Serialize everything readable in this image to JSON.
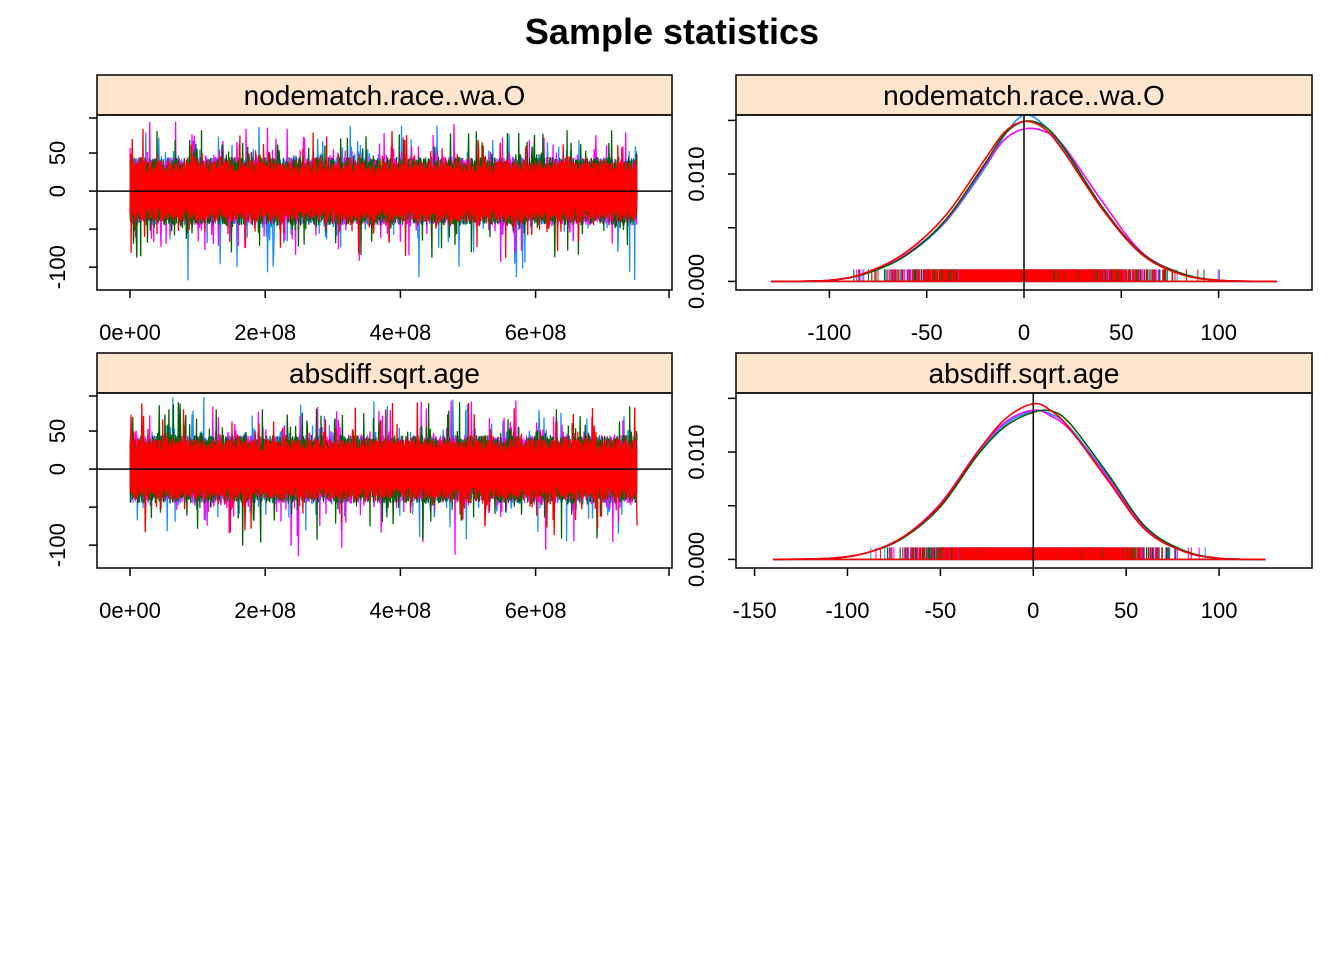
{
  "figure": {
    "title": "Sample statistics"
  },
  "colors": {
    "strip_background": "#FFE5CC",
    "chains": [
      "#1E90FF",
      "#FF00FF",
      "#006400",
      "#FF0000"
    ],
    "reference_line": "#000000"
  },
  "chart_data": [
    {
      "type": "line",
      "subtype": "trace",
      "strip_label": "nodematch.race..wa.O",
      "x_range": [
        0,
        750000000
      ],
      "ylim": [
        -130,
        100
      ],
      "x_ticks": [
        0,
        200000000,
        400000000,
        600000000
      ],
      "x_tick_labels": [
        "0e+00",
        "2e+08",
        "4e+08",
        "6e+08"
      ],
      "y_ticks": [
        -100,
        -50,
        0,
        50
      ],
      "y_tick_labels": [
        "-100",
        "",
        "0",
        "50"
      ],
      "reference_y": 0,
      "series": [
        {
          "typical_range": [
            -45,
            45
          ],
          "extremes": [
            -118,
            86
          ]
        },
        {
          "typical_range": [
            -45,
            45
          ],
          "extremes": [
            -95,
            91
          ]
        },
        {
          "typical_range": [
            -45,
            45
          ],
          "extremes": [
            -95,
            80
          ]
        },
        {
          "typical_range": [
            -40,
            40
          ],
          "extremes": [
            -88,
            82
          ]
        }
      ]
    },
    {
      "type": "line",
      "subtype": "density",
      "strip_label": "nodematch.race..wa.O",
      "xlim": [
        -148,
        148
      ],
      "ylim": [
        -0.0008,
        0.0155
      ],
      "x_ticks": [
        -100,
        -50,
        0,
        50,
        100
      ],
      "x_tick_labels": [
        "-100",
        "-50",
        "0",
        "50",
        "100"
      ],
      "y_ticks": [
        0,
        0.005,
        0.01,
        0.015
      ],
      "y_tick_labels": [
        "0.000",
        "",
        "0.010",
        ""
      ],
      "reference_x": 0,
      "series": [
        {
          "peak": 0.0156,
          "x": [
            -130,
            -100,
            -80,
            -60,
            -40,
            -20,
            -10,
            0,
            10,
            20,
            40,
            60,
            80,
            100,
            130
          ],
          "y": [
            0,
            0.0001,
            0.0008,
            0.0025,
            0.0056,
            0.0106,
            0.0136,
            0.0155,
            0.0146,
            0.0124,
            0.0068,
            0.0026,
            0.0007,
            0.0001,
            0
          ]
        },
        {
          "peak": 0.0143,
          "x": [
            -130,
            -100,
            -80,
            -60,
            -40,
            -20,
            -10,
            0,
            10,
            20,
            40,
            60,
            80,
            100,
            130
          ],
          "y": [
            0,
            0.0001,
            0.0008,
            0.0026,
            0.0057,
            0.0108,
            0.0132,
            0.0142,
            0.014,
            0.0127,
            0.0075,
            0.0028,
            0.0008,
            0.0001,
            0
          ]
        },
        {
          "peak": 0.015,
          "x": [
            -130,
            -100,
            -80,
            -60,
            -40,
            -20,
            -10,
            0,
            10,
            20,
            40,
            60,
            80,
            100,
            130
          ],
          "y": [
            0,
            0.0001,
            0.0008,
            0.0025,
            0.0058,
            0.011,
            0.0137,
            0.0149,
            0.0145,
            0.0126,
            0.007,
            0.0027,
            0.0008,
            0.0001,
            0
          ]
        },
        {
          "peak": 0.015,
          "x": [
            -130,
            -100,
            -80,
            -60,
            -40,
            -20,
            -10,
            0,
            10,
            20,
            40,
            60,
            80,
            100,
            130
          ],
          "y": [
            0,
            0.0001,
            0.0009,
            0.0028,
            0.0062,
            0.0114,
            0.0139,
            0.0149,
            0.0143,
            0.0122,
            0.0068,
            0.0026,
            0.0007,
            0.0001,
            0
          ]
        }
      ]
    },
    {
      "type": "line",
      "subtype": "trace",
      "strip_label": "absdiff.sqrt.age",
      "x_range": [
        0,
        750000000
      ],
      "ylim": [
        -130,
        100
      ],
      "x_ticks": [
        0,
        200000000,
        400000000,
        600000000
      ],
      "x_tick_labels": [
        "0e+00",
        "2e+08",
        "4e+08",
        "6e+08"
      ],
      "y_ticks": [
        -100,
        -50,
        0,
        50
      ],
      "y_tick_labels": [
        "-100",
        "",
        "0",
        "50"
      ],
      "reference_y": 0,
      "series": [
        {
          "typical_range": [
            -45,
            45
          ],
          "extremes": [
            -95,
            95
          ]
        },
        {
          "typical_range": [
            -45,
            45
          ],
          "extremes": [
            -125,
            90
          ]
        },
        {
          "typical_range": [
            -45,
            45
          ],
          "extremes": [
            -108,
            88
          ]
        },
        {
          "typical_range": [
            -40,
            40
          ],
          "extremes": [
            -95,
            95
          ]
        }
      ]
    },
    {
      "type": "line",
      "subtype": "density",
      "strip_label": "absdiff.sqrt.age",
      "xlim": [
        -160,
        150
      ],
      "ylim": [
        -0.0008,
        0.0155
      ],
      "x_ticks": [
        -150,
        -100,
        -50,
        0,
        50,
        100
      ],
      "x_tick_labels": [
        "-150",
        "-100",
        "-50",
        "0",
        "50",
        "100"
      ],
      "y_ticks": [
        0,
        0.005,
        0.01,
        0.015
      ],
      "y_tick_labels": [
        "0.000",
        "",
        "0.010",
        ""
      ],
      "reference_x": 0,
      "series": [
        {
          "peak": 0.014,
          "x": [
            -140,
            -110,
            -90,
            -70,
            -50,
            -30,
            -15,
            0,
            10,
            20,
            40,
            60,
            80,
            100,
            125
          ],
          "y": [
            0,
            0.0001,
            0.0006,
            0.002,
            0.005,
            0.0098,
            0.0126,
            0.0138,
            0.0135,
            0.0122,
            0.0078,
            0.003,
            0.0008,
            0.0001,
            0
          ]
        },
        {
          "peak": 0.014,
          "x": [
            -140,
            -110,
            -90,
            -70,
            -50,
            -30,
            -15,
            0,
            10,
            20,
            40,
            60,
            80,
            100,
            125
          ],
          "y": [
            0,
            0.0001,
            0.0006,
            0.0021,
            0.0052,
            0.01,
            0.0128,
            0.0139,
            0.0133,
            0.012,
            0.0076,
            0.0029,
            0.0008,
            0.0001,
            0
          ]
        },
        {
          "peak": 0.0142,
          "x": [
            -140,
            -110,
            -90,
            -70,
            -50,
            -30,
            -15,
            0,
            10,
            20,
            40,
            60,
            80,
            100,
            125
          ],
          "y": [
            0,
            0.0001,
            0.0006,
            0.002,
            0.0049,
            0.0097,
            0.0124,
            0.0137,
            0.0138,
            0.0126,
            0.008,
            0.0031,
            0.0009,
            0.0001,
            0
          ]
        },
        {
          "peak": 0.0145,
          "x": [
            -140,
            -110,
            -90,
            -70,
            -50,
            -30,
            -15,
            0,
            10,
            20,
            40,
            60,
            80,
            100,
            125
          ],
          "y": [
            0,
            0.0001,
            0.0006,
            0.0021,
            0.0051,
            0.01,
            0.0131,
            0.0145,
            0.0138,
            0.0121,
            0.0074,
            0.0028,
            0.0008,
            0.0001,
            0
          ]
        }
      ]
    }
  ]
}
